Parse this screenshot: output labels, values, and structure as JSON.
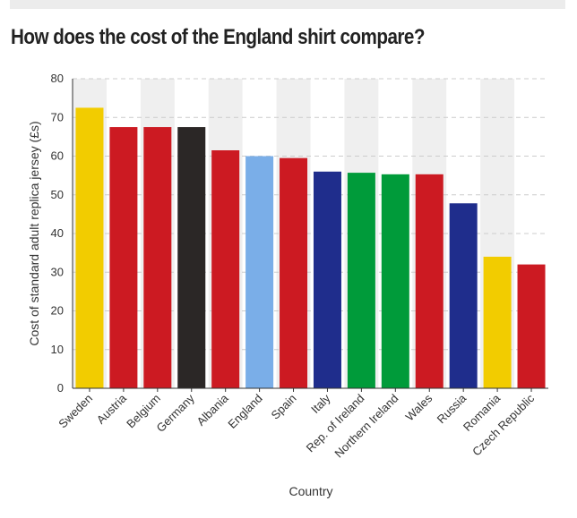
{
  "title": "How does the cost of the England shirt compare?",
  "chart_data": {
    "type": "bar",
    "categories": [
      "Sweden",
      "Austria",
      "Belgium",
      "Germany",
      "Albania",
      "England",
      "Spain",
      "Italy",
      "Rep. of Ireland",
      "Northern Ireland",
      "Wales",
      "Russia",
      "Romania",
      "Czech Republic"
    ],
    "values": [
      72.5,
      67.5,
      67.5,
      67.5,
      61.5,
      60,
      59.5,
      56,
      55.7,
      55.3,
      55.3,
      47.8,
      34,
      32
    ],
    "colors": [
      "#f2cc00",
      "#cc1a22",
      "#cc1a22",
      "#2b2726",
      "#cc1a22",
      "#7aaee8",
      "#cc1a22",
      "#1f2d8c",
      "#009b3a",
      "#009b3a",
      "#cc1a22",
      "#1f2d8c",
      "#f2cc00",
      "#cc1a22"
    ],
    "ylabel": "Cost of standard adult replica jersey (£s)",
    "xlabel": "Country",
    "ylim": [
      0,
      80
    ],
    "yticks": [
      "0",
      "10",
      "20",
      "30",
      "40",
      "50",
      "60",
      "70",
      "80"
    ],
    "grid": true,
    "gridline_color": "#cccccc",
    "band_color": "#efefef",
    "axis_color": "#333333"
  }
}
